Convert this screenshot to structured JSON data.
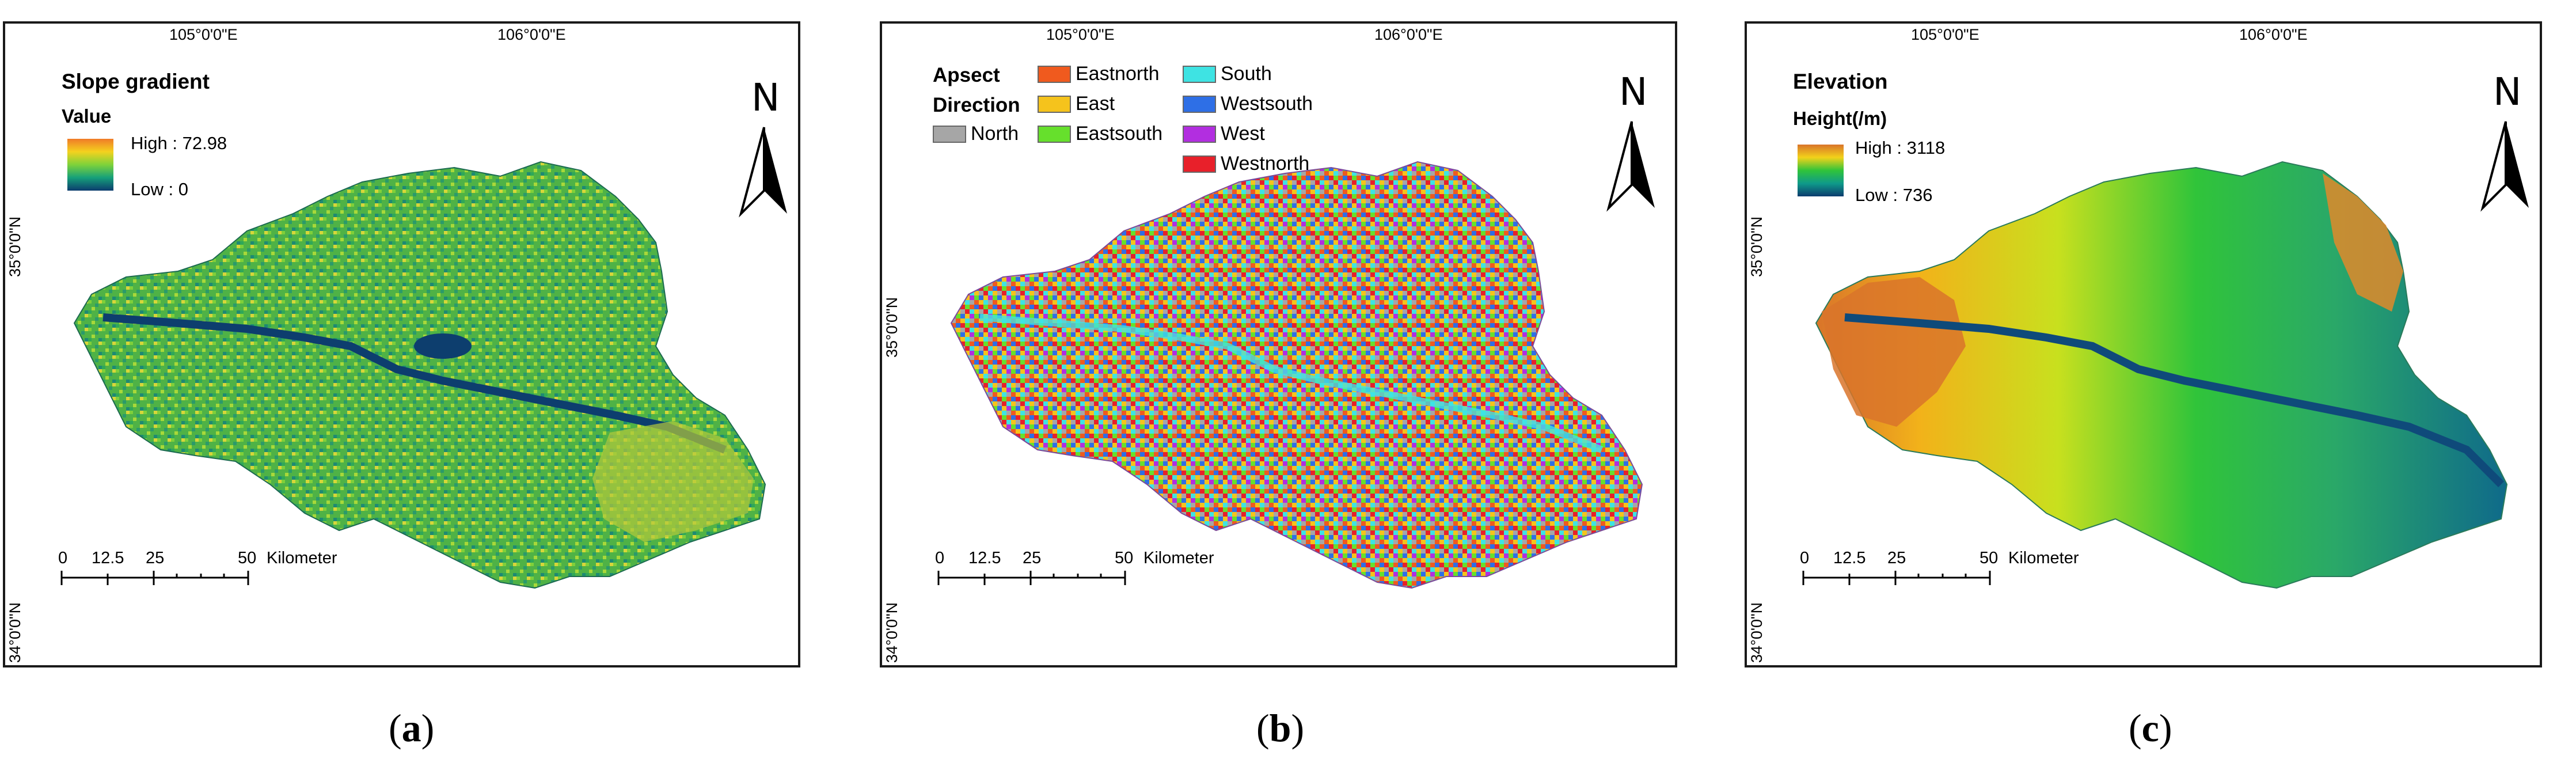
{
  "panels": [
    {
      "id": "a",
      "lon_labels": [
        "105°0'0\"E",
        "106°0'0\"E"
      ],
      "lat_labels": [
        "35°0'0\"N",
        "34°0'0\"N"
      ],
      "title": "Slope gradient",
      "subtitle": "Value",
      "high": "High : 72.98",
      "low": "Low : 0",
      "north": "N",
      "scale_ticks": [
        "0",
        "12.5",
        "25",
        "50"
      ],
      "scale_unit": "Kilometer",
      "caption_open": "(",
      "caption_letter": "a",
      "caption_close": ")",
      "ramp_colors": [
        "#f07a28",
        "#f4d21e",
        "#7ed23a",
        "#16a07a",
        "#0c3c6e"
      ]
    },
    {
      "id": "b",
      "lon_labels": [
        "105°0'0\"E",
        "106°0'0\"E"
      ],
      "lat_labels": [
        "35°0'0\"N",
        "34°0'0\"N"
      ],
      "title": "Apsect",
      "subtitle": "Direction",
      "north": "N",
      "legend": [
        {
          "label": "Eastnorth",
          "color": "#f05a1e"
        },
        {
          "label": "East",
          "color": "#f5c31c"
        },
        {
          "label": "Eastsouth",
          "color": "#66e02c"
        },
        {
          "label": "North",
          "color": "#a6a6a6"
        },
        {
          "label": "South",
          "color": "#3ee3e3"
        },
        {
          "label": "Westsouth",
          "color": "#2e6fe6"
        },
        {
          "label": "West",
          "color": "#b22ee0"
        },
        {
          "label": "Westnorth",
          "color": "#e8202a"
        }
      ],
      "scale_ticks": [
        "0",
        "12.5",
        "25",
        "50"
      ],
      "scale_unit": "Kilometer",
      "caption_open": "(",
      "caption_letter": "b",
      "caption_close": ")"
    },
    {
      "id": "c",
      "lon_labels": [
        "105°0'0\"E",
        "106°0'0\"E"
      ],
      "lat_labels": [
        "35°0'0\"N",
        "34°0'0\"N"
      ],
      "title": "Elevation",
      "subtitle": "Height(/m)",
      "high": "High : 3118",
      "low": "Low : 736",
      "north": "N",
      "scale_ticks": [
        "0",
        "12.5",
        "25",
        "50"
      ],
      "scale_unit": "Kilometer",
      "caption_open": "(",
      "caption_letter": "c",
      "caption_close": ")",
      "ramp_colors": [
        "#d9742a",
        "#f2d21a",
        "#30c43a",
        "#0f9a8a",
        "#0c3c6e"
      ]
    }
  ]
}
